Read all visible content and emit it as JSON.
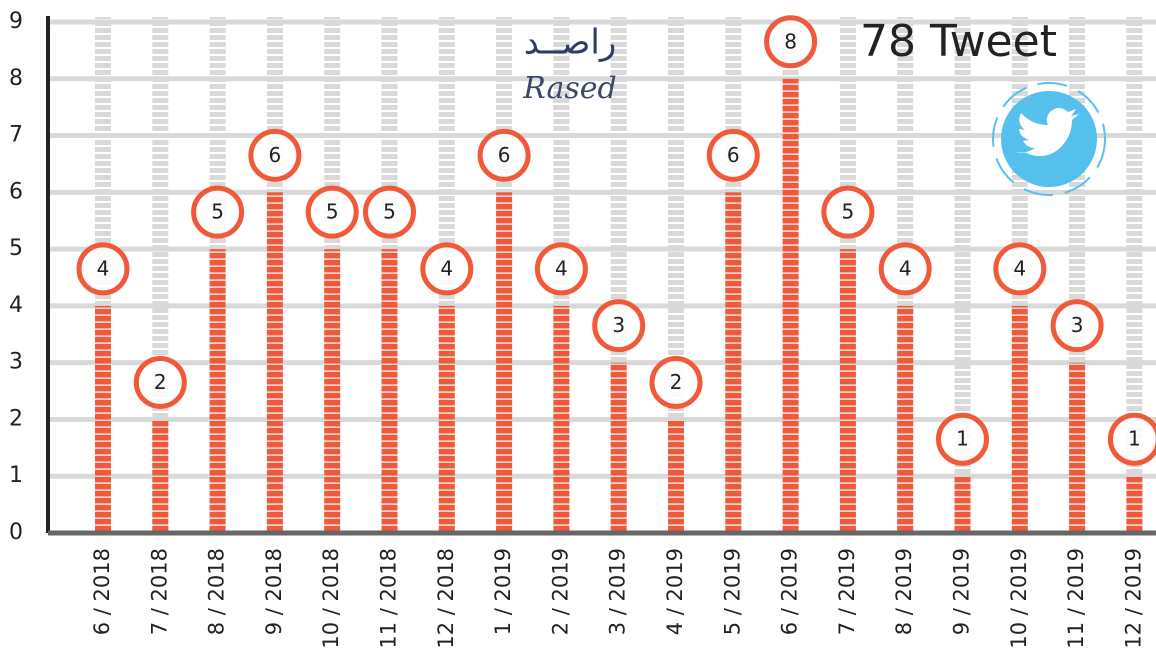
{
  "chart_data": {
    "type": "bar",
    "title": "78 Tweet",
    "annotations": [
      "راصــد",
      "Rased"
    ],
    "categories": [
      "6 / 2018",
      "7 / 2018",
      "8 / 2018",
      "9 / 2018",
      "10 / 2018",
      "11 / 2018",
      "12 / 2018",
      "1 / 2019",
      "2 / 2019",
      "3 / 2019",
      "4 / 2019",
      "5 / 2019",
      "6 / 2019",
      "7 / 2019",
      "8 / 2019",
      "9 / 2019",
      "10 / 2019",
      "11 / 2019",
      "12 / 2019"
    ],
    "values": [
      4,
      2,
      5,
      6,
      5,
      5,
      4,
      6,
      4,
      3,
      2,
      6,
      8,
      5,
      4,
      1,
      4,
      3,
      1
    ],
    "color": "#f05a3a",
    "ylim": [
      0,
      9
    ],
    "yticks": [
      0,
      1,
      2,
      3,
      4,
      5,
      6,
      7,
      8,
      9
    ],
    "grid": true
  }
}
